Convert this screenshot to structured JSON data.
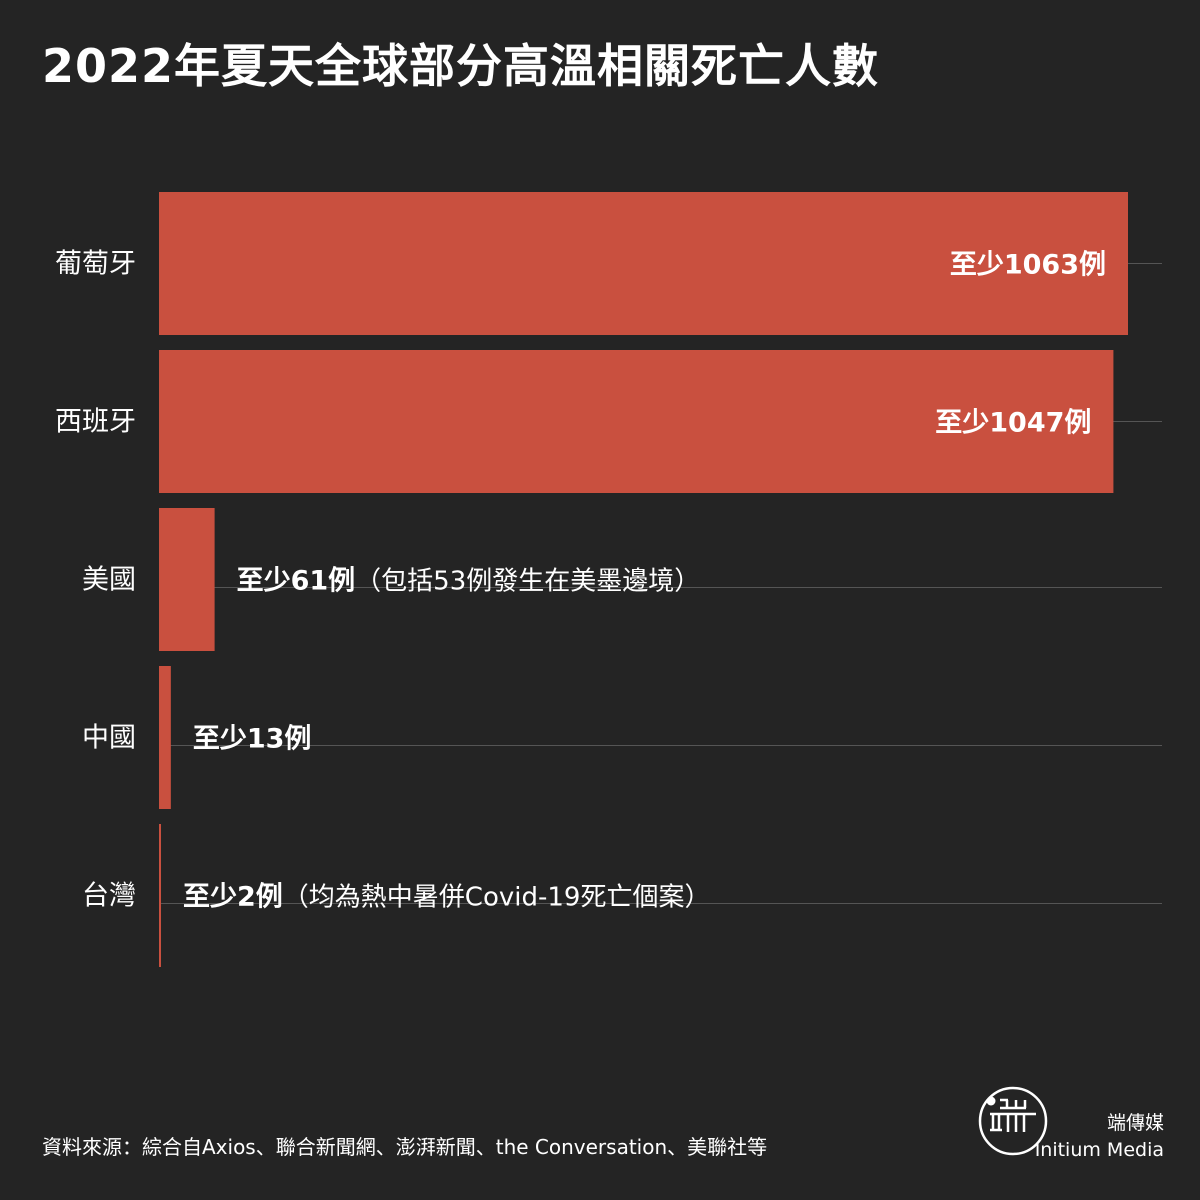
{
  "title": "2022年夏天全球部分高溫相關死亡人數",
  "colors": {
    "background": "#242424",
    "bar": "#c9503f",
    "gridline": "#555555",
    "text": "#ffffff"
  },
  "chart_data": {
    "type": "bar",
    "orientation": "horizontal",
    "categories": [
      "葡萄牙",
      "西班牙",
      "美國",
      "中國",
      "台灣"
    ],
    "values": [
      1063,
      1047,
      61,
      13,
      2
    ],
    "xlim": [
      0,
      1063
    ],
    "grid": true,
    "value_labels": [
      {
        "bold": "至少1063例",
        "note": ""
      },
      {
        "bold": "至少1047例",
        "note": ""
      },
      {
        "bold": "至少61例",
        "note": "（包括53例發生在美墨邊境）"
      },
      {
        "bold": "至少13例",
        "note": ""
      },
      {
        "bold": "至少2例",
        "note": "（均為熱中暑併Covid-19死亡個案）"
      }
    ]
  },
  "footer": {
    "source": "資料來源：綜合自Axios、聯合新聞網、澎湃新聞、the Conversation、美聯社等",
    "brand_name": "端傳媒",
    "brand_english": "Initium Media"
  }
}
